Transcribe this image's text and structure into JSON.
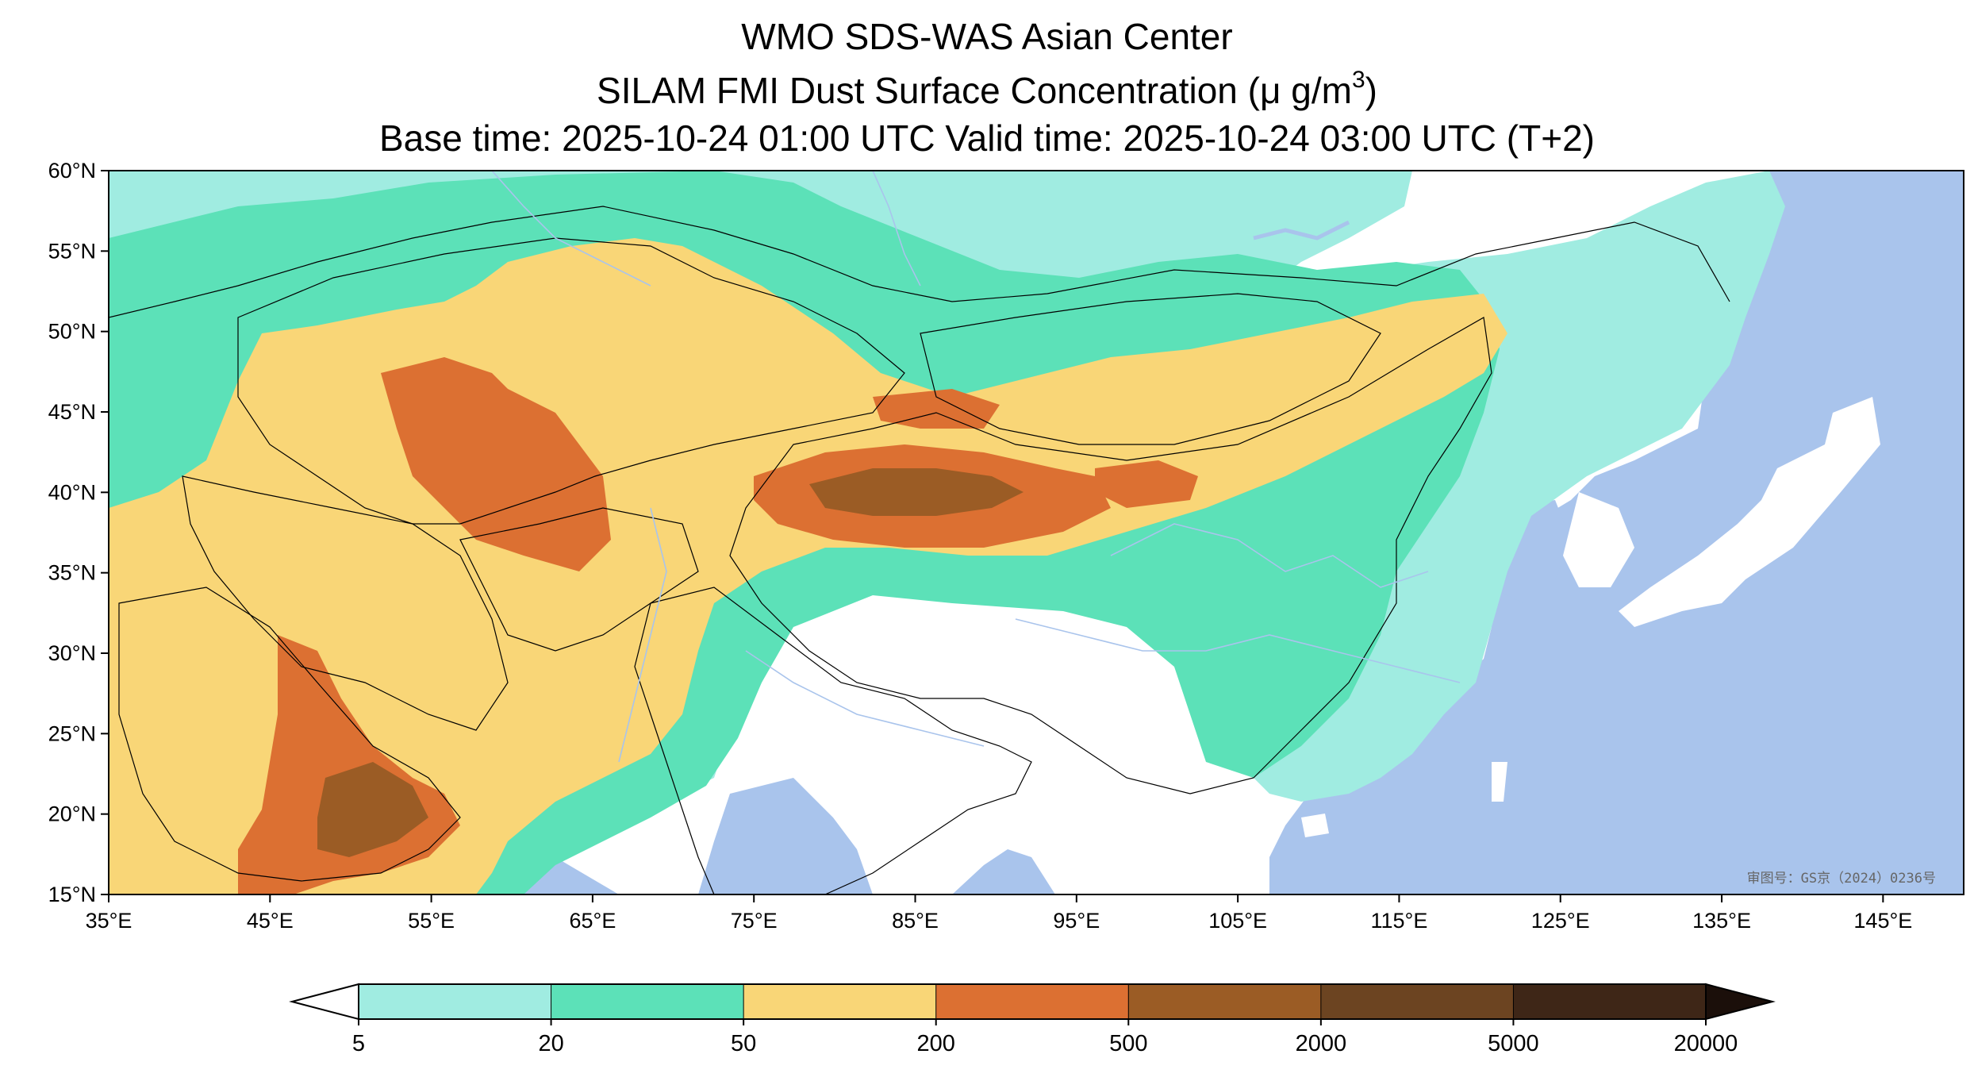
{
  "title": {
    "line1": "WMO SDS-WAS Asian Center",
    "line2_prefix": "SILAM FMI Dust Surface Concentration (",
    "line2_unit": "μ g/m",
    "line2_sup": "3",
    "line2_suffix": ")",
    "line3": "Base time: 2025-10-24 01:00 UTC Valid time: 2025-10-24 03:00 UTC (T+2)"
  },
  "map": {
    "lon_range": [
      35,
      150
    ],
    "lat_range": [
      15,
      60
    ],
    "lat_ticks": [
      "60°N",
      "55°N",
      "50°N",
      "45°N",
      "40°N",
      "35°N",
      "30°N",
      "25°N",
      "20°N",
      "15°N"
    ],
    "lon_ticks": [
      "35°E",
      "45°E",
      "55°E",
      "65°E",
      "75°E",
      "85°E",
      "95°E",
      "105°E",
      "115°E",
      "125°E",
      "135°E",
      "145°E"
    ],
    "ocean_color": "#a9c4ec",
    "land_color": "#ffffff",
    "watermark": "审图号：GS京（2024）0236号"
  },
  "colorbar": {
    "levels": [
      "5",
      "20",
      "50",
      "200",
      "500",
      "2000",
      "5000",
      "20000"
    ],
    "colors": [
      "#a0ece1",
      "#5ce1b8",
      "#f9d677",
      "#dc7032",
      "#9b5c25",
      "#6c4421",
      "#3e2617"
    ],
    "extend": "both",
    "under_color": "#ffffff",
    "over_color": "#1b0f0a"
  }
}
